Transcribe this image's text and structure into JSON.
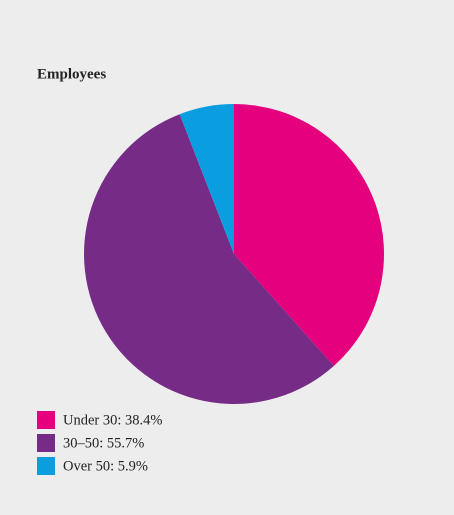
{
  "chart_data": {
    "type": "pie",
    "title": "Employees",
    "categories": [
      "Under 30: 38.4%",
      "30–50: 55.7%",
      "Over 50: 5.9%"
    ],
    "values": [
      38.4,
      55.7,
      5.9
    ],
    "colors": [
      "#e5007d",
      "#762b86",
      "#0a9ee0"
    ]
  }
}
